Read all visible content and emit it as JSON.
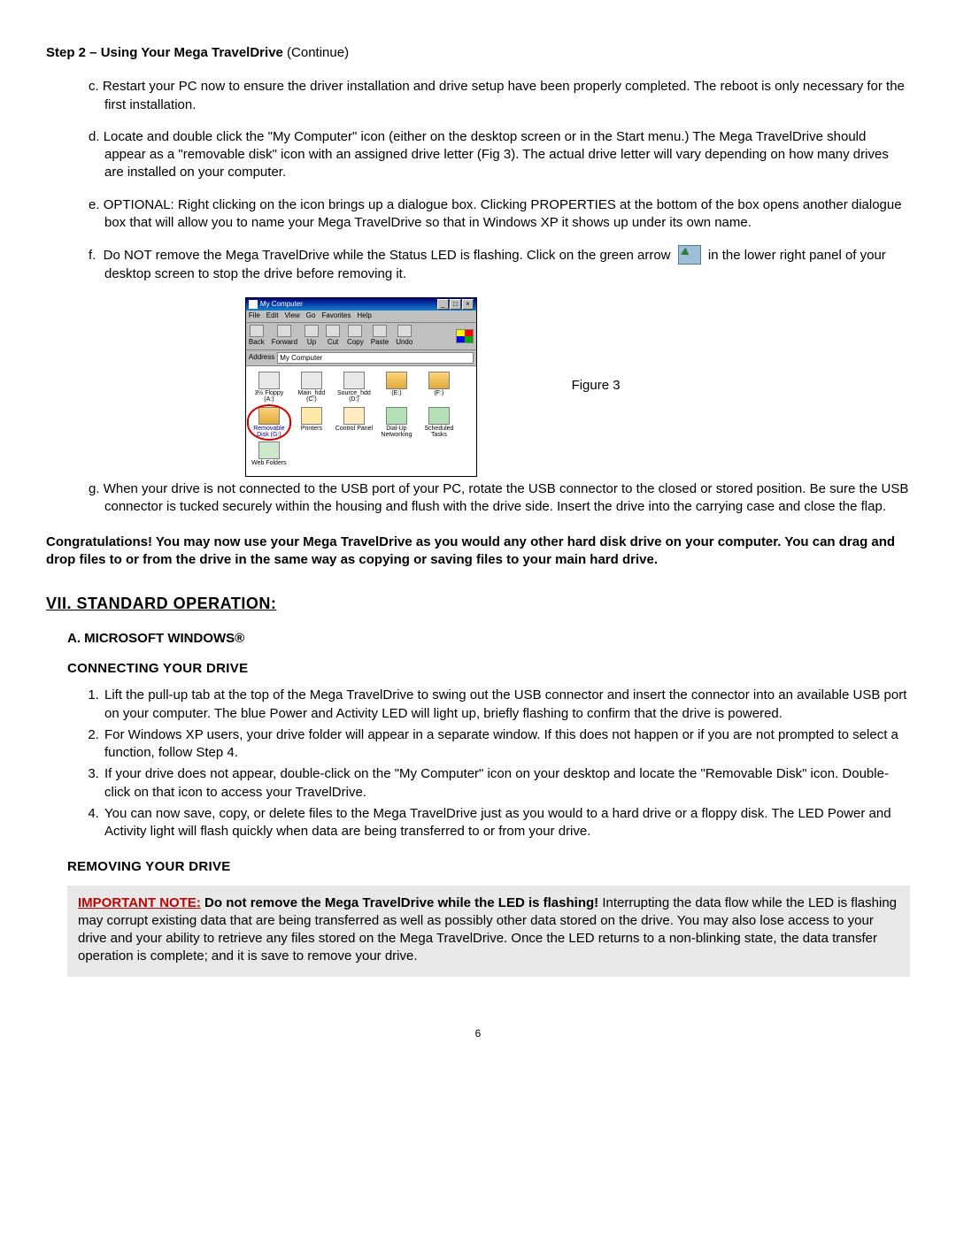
{
  "step2": {
    "heading_bold": "Step 2 – Using Your Mega TravelDrive ",
    "heading_cont": "(Continue)",
    "item_c": "Restart your PC now to ensure the driver installation and drive setup have been properly completed. The reboot is only necessary for the first installation.",
    "item_d": "Locate and double click the \"My Computer\" icon (either on the desktop screen or in the Start menu.) The Mega TravelDrive should appear as a \"removable disk\" icon with an assigned drive letter (Fig 3). The actual drive letter will vary depending on how many drives are installed on your computer.",
    "item_e": "OPTIONAL: Right clicking on the icon brings up a dialogue box. Clicking PROPERTIES at the bottom of the box opens another dialogue box that will allow you to name your Mega TravelDrive so that in Windows XP it shows up under its own name.",
    "item_f_pre": "Do NOT remove the Mega TravelDrive while the Status LED is flashing. Click on the green arrow",
    "item_f_post": "in the lower right panel of your desktop screen to stop the drive before removing it.",
    "item_g": "When your drive is not connected to the USB port of your PC, rotate the USB connector to the closed or stored position.  Be sure the USB connector is tucked securely within the housing and flush with the drive side. Insert the drive into the carrying case and close the flap."
  },
  "figure": {
    "title": "My Computer",
    "menu": [
      "File",
      "Edit",
      "View",
      "Go",
      "Favorites",
      "Help"
    ],
    "toolbar": [
      "Back",
      "Forward",
      "Up",
      "Cut",
      "Copy",
      "Paste",
      "Undo"
    ],
    "address_label": "Address",
    "address_value": "My Computer",
    "icons_row1": [
      {
        "lbl": "3½ Floppy (A:)",
        "cls": "drv"
      },
      {
        "lbl": "Main_hdd (C:)",
        "cls": "drv"
      },
      {
        "lbl": "Source_hdd (D:)",
        "cls": "drv"
      },
      {
        "lbl": "(E:)",
        "cls": "gld"
      },
      {
        "lbl": "(F:)",
        "cls": "gld"
      },
      {
        "lbl": "Removable Disk (G:)",
        "cls": "gld",
        "sel": true,
        "circle": true
      }
    ],
    "icons_row2": [
      {
        "lbl": "Printers",
        "cls": "pr"
      },
      {
        "lbl": "Control Panel",
        "cls": "cp"
      },
      {
        "lbl": "Dial-Up Networking",
        "cls": "fd"
      },
      {
        "lbl": "Scheduled Tasks",
        "cls": "fd"
      },
      {
        "lbl": "Web Folders",
        "cls": "wf"
      }
    ],
    "caption": "Figure 3"
  },
  "congrats": "Congratulations!  You may now use your Mega TravelDrive as you would any other hard disk drive on your computer.  You can drag and drop files to or from the drive in the same way as copying or saving files to your main hard drive.",
  "section7": {
    "title": "VII. STANDARD OPERATION:",
    "subA": "A.  MICROSOFT WINDOWS®",
    "connecting": "CONNECTING YOUR DRIVE",
    "items": [
      "Lift the pull-up tab at the top of the Mega TravelDrive to swing out the USB connector and insert the connector into an available USB port on your computer.  The blue Power and Activity LED will light up, briefly flashing to confirm that the drive is powered.",
      "For Windows XP users, your drive folder will appear in a separate window.  If this does not happen or if you are not prompted to select a function, follow Step 4.",
      "If your drive does not appear, double-click on the \"My Computer\" icon on your desktop and locate the \"Removable Disk\" icon.  Double-click on that icon to access your TravelDrive.",
      "You can now save, copy, or delete files to the Mega TravelDrive just as you would to a hard drive or a floppy disk. The LED Power and Activity light will flash quickly when data are being transferred to or from your drive."
    ],
    "removing": "REMOVING YOUR DRIVE",
    "note_lead": "IMPORTANT NOTE:",
    "note_bold": "  Do not remove the Mega TravelDrive while the LED is flashing!",
    "note_rest": " Interrupting the data flow while the LED is flashing may corrupt existing data that are being transferred as well as possibly other data stored on the drive.  You may also lose access to your drive and your ability to retrieve any files stored on the Mega TravelDrive.  Once the LED returns to a non-blinking state, the data transfer operation is complete; and it is save to remove your drive."
  },
  "page_number": "6"
}
